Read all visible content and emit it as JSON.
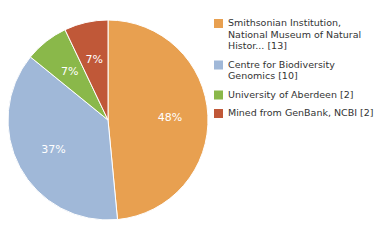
{
  "chart_data": {
    "type": "pie",
    "categories": [
      "Smithsonian Institution,\nNational Museum of Natural\nHistor... [13]",
      "Centre for Biodiversity\nGenomics [10]",
      "University of Aberdeen [2]",
      "Mined from GenBank, NCBI [2]"
    ],
    "values": [
      48,
      37,
      7,
      7
    ],
    "value_labels": [
      "48%",
      "37%",
      "7%",
      "7%"
    ],
    "colors": [
      "#e8a050",
      "#a0b8d8",
      "#8ab84a",
      "#c05838"
    ],
    "data_labels": true,
    "legend": "upper right"
  }
}
